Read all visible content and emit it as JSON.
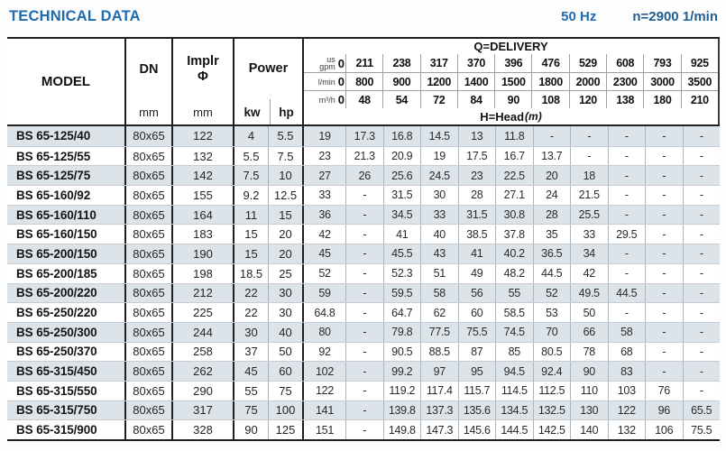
{
  "header": {
    "title": "TECHNICAL DATA",
    "frequency": "50 Hz",
    "speed": "n=2900 1/min",
    "accent_color": "#1e6bae"
  },
  "table": {
    "model_label": "MODEL",
    "dn_label": "DN",
    "implr_label": "Implr",
    "implr_symbol": "Φ",
    "power_label": "Power",
    "kw_label": "kw",
    "hp_label": "hp",
    "mm_label": "mm",
    "delivery_label": "Q=DELIVERY",
    "head_label": "H=Head",
    "head_unit": "(m)",
    "flow_gpm": {
      "label": "us\ngpm",
      "zero": "0",
      "values": [
        "211",
        "238",
        "317",
        "370",
        "396",
        "476",
        "529",
        "608",
        "793",
        "925"
      ]
    },
    "flow_lmin": {
      "label": "l/min",
      "zero": "0",
      "values": [
        "800",
        "900",
        "1200",
        "1400",
        "1500",
        "1800",
        "2000",
        "2300",
        "3000",
        "3500"
      ]
    },
    "flow_m3h": {
      "label": "m³/h",
      "zero": "0",
      "values": [
        "48",
        "54",
        "72",
        "84",
        "90",
        "108",
        "120",
        "138",
        "180",
        "210"
      ]
    },
    "rows": [
      {
        "model": "BS 65-125/40",
        "dn": "80x65",
        "implr": "122",
        "kw": "4",
        "hp": "5.5",
        "heads": [
          "19",
          "17.3",
          "16.8",
          "14.5",
          "13",
          "11.8",
          "-",
          "-",
          "-",
          "-",
          "-"
        ]
      },
      {
        "model": "BS 65-125/55",
        "dn": "80x65",
        "implr": "132",
        "kw": "5.5",
        "hp": "7.5",
        "heads": [
          "23",
          "21.3",
          "20.9",
          "19",
          "17.5",
          "16.7",
          "13.7",
          "-",
          "-",
          "-",
          "-"
        ]
      },
      {
        "model": "BS 65-125/75",
        "dn": "80x65",
        "implr": "142",
        "kw": "7.5",
        "hp": "10",
        "heads": [
          "27",
          "26",
          "25.6",
          "24.5",
          "23",
          "22.5",
          "20",
          "18",
          "-",
          "-",
          "-"
        ]
      },
      {
        "model": "BS 65-160/92",
        "dn": "80x65",
        "implr": "155",
        "kw": "9.2",
        "hp": "12.5",
        "heads": [
          "33",
          "-",
          "31.5",
          "30",
          "28",
          "27.1",
          "24",
          "21.5",
          "-",
          "-",
          "-"
        ]
      },
      {
        "model": "BS 65-160/110",
        "dn": "80x65",
        "implr": "164",
        "kw": "11",
        "hp": "15",
        "heads": [
          "36",
          "-",
          "34.5",
          "33",
          "31.5",
          "30.8",
          "28",
          "25.5",
          "-",
          "-",
          "-"
        ]
      },
      {
        "model": "BS 65-160/150",
        "dn": "80x65",
        "implr": "183",
        "kw": "15",
        "hp": "20",
        "heads": [
          "42",
          "-",
          "41",
          "40",
          "38.5",
          "37.8",
          "35",
          "33",
          "29.5",
          "-",
          "-"
        ]
      },
      {
        "model": "BS 65-200/150",
        "dn": "80x65",
        "implr": "190",
        "kw": "15",
        "hp": "20",
        "heads": [
          "45",
          "-",
          "45.5",
          "43",
          "41",
          "40.2",
          "36.5",
          "34",
          "-",
          "-",
          "-"
        ]
      },
      {
        "model": "BS 65-200/185",
        "dn": "80x65",
        "implr": "198",
        "kw": "18.5",
        "hp": "25",
        "heads": [
          "52",
          "-",
          "52.3",
          "51",
          "49",
          "48.2",
          "44.5",
          "42",
          "-",
          "-",
          "-"
        ]
      },
      {
        "model": "BS 65-200/220",
        "dn": "80x65",
        "implr": "212",
        "kw": "22",
        "hp": "30",
        "heads": [
          "59",
          "-",
          "59.5",
          "58",
          "56",
          "55",
          "52",
          "49.5",
          "44.5",
          "-",
          "-"
        ]
      },
      {
        "model": "BS 65-250/220",
        "dn": "80x65",
        "implr": "225",
        "kw": "22",
        "hp": "30",
        "heads": [
          "64.8",
          "-",
          "64.7",
          "62",
          "60",
          "58.5",
          "53",
          "50",
          "-",
          "-",
          "-"
        ]
      },
      {
        "model": "BS 65-250/300",
        "dn": "80x65",
        "implr": "244",
        "kw": "30",
        "hp": "40",
        "heads": [
          "80",
          "-",
          "79.8",
          "77.5",
          "75.5",
          "74.5",
          "70",
          "66",
          "58",
          "-",
          "-"
        ]
      },
      {
        "model": "BS 65-250/370",
        "dn": "80x65",
        "implr": "258",
        "kw": "37",
        "hp": "50",
        "heads": [
          "92",
          "-",
          "90.5",
          "88.5",
          "87",
          "85",
          "80.5",
          "78",
          "68",
          "-",
          "-"
        ]
      },
      {
        "model": "BS 65-315/450",
        "dn": "80x65",
        "implr": "262",
        "kw": "45",
        "hp": "60",
        "heads": [
          "102",
          "-",
          "99.2",
          "97",
          "95",
          "94.5",
          "92.4",
          "90",
          "83",
          "-",
          "-"
        ]
      },
      {
        "model": "BS 65-315/550",
        "dn": "80x65",
        "implr": "290",
        "kw": "55",
        "hp": "75",
        "heads": [
          "122",
          "-",
          "119.2",
          "117.4",
          "115.7",
          "114.5",
          "112.5",
          "110",
          "103",
          "76",
          "-"
        ]
      },
      {
        "model": "BS 65-315/750",
        "dn": "80x65",
        "implr": "317",
        "kw": "75",
        "hp": "100",
        "heads": [
          "141",
          "-",
          "139.8",
          "137.3",
          "135.6",
          "134.5",
          "132.5",
          "130",
          "122",
          "96",
          "65.5"
        ]
      },
      {
        "model": "BS 65-315/900",
        "dn": "80x65",
        "implr": "328",
        "kw": "90",
        "hp": "125",
        "heads": [
          "151",
          "-",
          "149.8",
          "147.3",
          "145.6",
          "144.5",
          "142.5",
          "140",
          "132",
          "106",
          "75.5"
        ]
      }
    ]
  }
}
